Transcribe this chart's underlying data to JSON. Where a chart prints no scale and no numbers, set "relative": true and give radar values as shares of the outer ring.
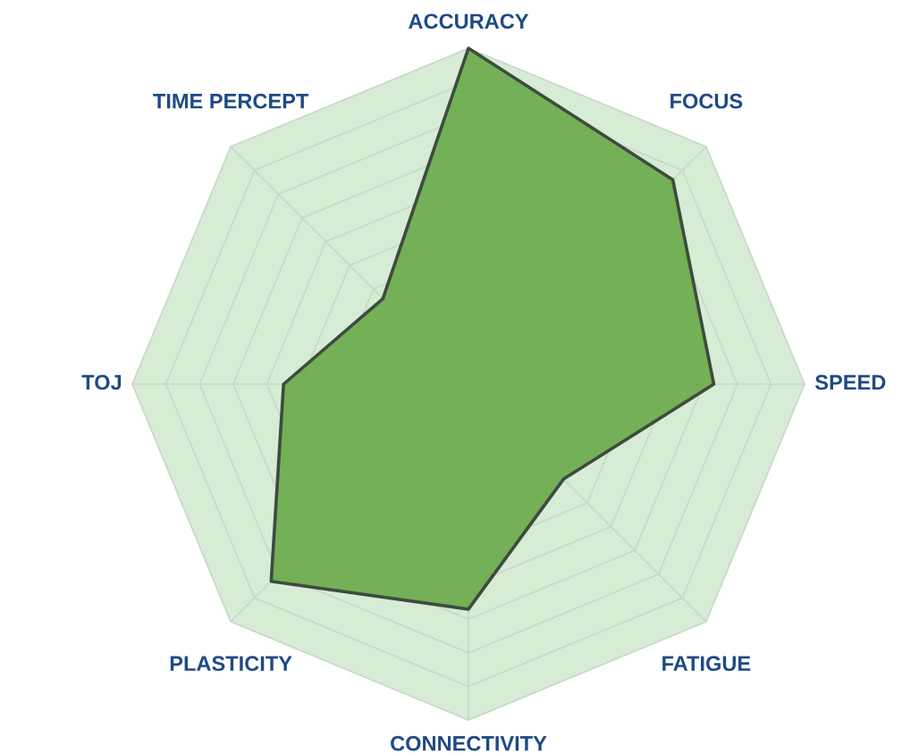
{
  "chart_data": {
    "type": "radar",
    "relative": true,
    "grid": true,
    "categories": [
      "ACCURACY",
      "FOCUS",
      "SPEED",
      "FATIGUE",
      "CONNECTIVITY",
      "PLASTICITY",
      "TOJ",
      "TIME PERCEPT"
    ],
    "series": [
      {
        "color": "#6aaa4a",
        "values": [
          1.0,
          0.86,
          0.73,
          0.4,
          0.67,
          0.83,
          0.55,
          0.36
        ]
      }
    ]
  }
}
